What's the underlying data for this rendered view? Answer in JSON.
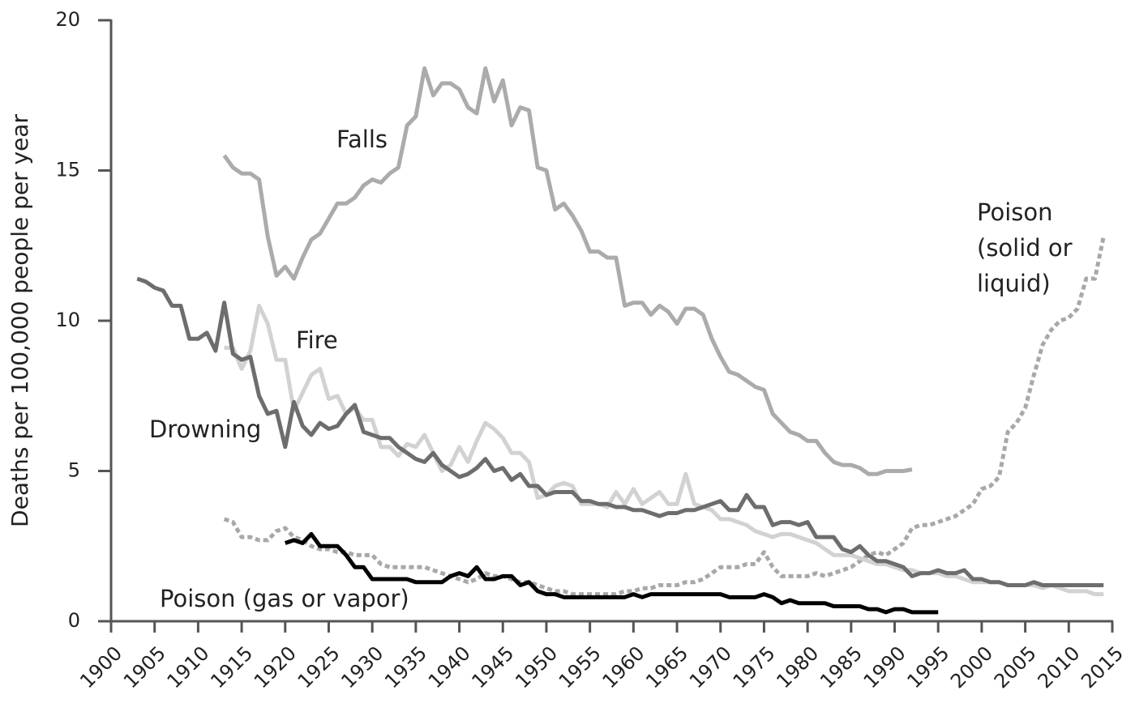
{
  "chart_data": {
    "type": "line",
    "y_label": "Deaths per 100,000 people per year",
    "xlim": [
      1900,
      2015
    ],
    "xticks": [
      1900,
      1905,
      1910,
      1915,
      1920,
      1925,
      1930,
      1935,
      1940,
      1945,
      1950,
      1955,
      1960,
      1965,
      1970,
      1975,
      1980,
      1985,
      1990,
      1995,
      2000,
      2005,
      2010,
      2015
    ],
    "ylim": [
      0,
      20
    ],
    "yticks": [
      0,
      5,
      10,
      15,
      20
    ],
    "x": [
      1903,
      1904,
      1905,
      1906,
      1907,
      1908,
      1909,
      1910,
      1911,
      1912,
      1913,
      1914,
      1915,
      1916,
      1917,
      1918,
      1919,
      1920,
      1921,
      1922,
      1923,
      1924,
      1925,
      1926,
      1927,
      1928,
      1929,
      1930,
      1931,
      1932,
      1933,
      1934,
      1935,
      1936,
      1937,
      1938,
      1939,
      1940,
      1941,
      1942,
      1943,
      1944,
      1945,
      1946,
      1947,
      1948,
      1949,
      1950,
      1951,
      1952,
      1953,
      1954,
      1955,
      1956,
      1957,
      1958,
      1959,
      1960,
      1961,
      1962,
      1963,
      1964,
      1965,
      1966,
      1967,
      1968,
      1969,
      1970,
      1971,
      1972,
      1973,
      1974,
      1975,
      1976,
      1977,
      1978,
      1979,
      1980,
      1981,
      1982,
      1983,
      1984,
      1985,
      1986,
      1987,
      1988,
      1989,
      1990,
      1991,
      1992,
      1993,
      1994,
      1995,
      1996,
      1997,
      1998,
      1999,
      2000,
      2001,
      2002,
      2003,
      2004,
      2005,
      2006,
      2007,
      2008,
      2009,
      2010,
      2011,
      2012,
      2013,
      2014
    ],
    "series": [
      {
        "name": "Poison (solid or liquid)",
        "color": "#a8a8a8",
        "dashed": true,
        "values": [
          null,
          null,
          null,
          null,
          null,
          null,
          null,
          null,
          null,
          null,
          3.4,
          3.3,
          2.8,
          2.8,
          2.7,
          2.7,
          3.0,
          3.1,
          2.8,
          2.7,
          2.5,
          2.4,
          2.4,
          2.3,
          2.3,
          2.2,
          2.2,
          2.2,
          1.9,
          1.8,
          1.8,
          1.8,
          1.8,
          1.8,
          1.7,
          1.6,
          1.5,
          1.4,
          1.3,
          1.4,
          1.6,
          1.5,
          1.5,
          1.4,
          1.3,
          1.3,
          1.2,
          1.1,
          1.0,
          1.0,
          0.9,
          0.9,
          0.9,
          0.9,
          0.9,
          0.9,
          1.0,
          1.0,
          1.1,
          1.1,
          1.2,
          1.2,
          1.2,
          1.3,
          1.3,
          1.4,
          1.6,
          1.8,
          1.8,
          1.8,
          1.9,
          1.9,
          2.3,
          1.8,
          1.5,
          1.5,
          1.5,
          1.5,
          1.6,
          1.5,
          1.6,
          1.7,
          1.8,
          2.0,
          2.2,
          2.3,
          2.2,
          2.4,
          2.6,
          3.1,
          3.2,
          3.2,
          3.3,
          3.4,
          3.5,
          3.7,
          3.9,
          4.4,
          4.5,
          4.8,
          6.3,
          6.6,
          7.1,
          8.2,
          9.2,
          9.7,
          10.0,
          10.1,
          10.4,
          11.4,
          11.4,
          12.8
        ]
      },
      {
        "name": "Fire",
        "color": "#d2d2d2",
        "dashed": false,
        "values": [
          null,
          null,
          null,
          null,
          null,
          null,
          null,
          null,
          null,
          null,
          9.1,
          9.1,
          8.4,
          9.0,
          10.5,
          9.9,
          8.7,
          8.7,
          7.0,
          7.6,
          8.2,
          8.4,
          7.4,
          7.5,
          6.9,
          7.1,
          6.7,
          6.7,
          5.8,
          5.8,
          5.5,
          5.9,
          5.8,
          6.2,
          5.6,
          5.0,
          5.2,
          5.8,
          5.3,
          6.0,
          6.6,
          6.4,
          6.1,
          5.6,
          5.6,
          5.3,
          4.1,
          4.2,
          4.5,
          4.6,
          4.5,
          3.9,
          3.9,
          3.9,
          3.8,
          4.3,
          3.9,
          4.4,
          3.9,
          4.1,
          4.3,
          3.9,
          3.9,
          4.9,
          3.9,
          3.8,
          3.7,
          3.4,
          3.4,
          3.3,
          3.2,
          3.0,
          2.9,
          2.8,
          2.9,
          2.9,
          2.8,
          2.7,
          2.6,
          2.4,
          2.2,
          2.2,
          2.2,
          2.1,
          2.0,
          1.9,
          1.9,
          1.8,
          1.7,
          1.7,
          1.6,
          1.6,
          1.6,
          1.5,
          1.5,
          1.4,
          1.3,
          1.3,
          1.3,
          1.3,
          1.2,
          1.2,
          1.2,
          1.2,
          1.1,
          1.2,
          1.1,
          1.0,
          1.0,
          1.0,
          0.9,
          0.9
        ]
      },
      {
        "name": "Falls",
        "color": "#ababab",
        "dashed": false,
        "values": [
          null,
          null,
          null,
          null,
          null,
          null,
          null,
          null,
          null,
          null,
          15.5,
          15.1,
          14.9,
          14.9,
          14.7,
          12.8,
          11.5,
          11.8,
          11.4,
          12.1,
          12.7,
          12.9,
          13.4,
          13.9,
          13.9,
          14.1,
          14.5,
          14.7,
          14.6,
          14.9,
          15.1,
          16.5,
          16.8,
          18.4,
          17.5,
          17.9,
          17.9,
          17.7,
          17.1,
          16.9,
          18.4,
          17.3,
          18.0,
          16.5,
          17.1,
          17.0,
          15.1,
          15.0,
          13.7,
          13.9,
          13.5,
          13.0,
          12.3,
          12.3,
          12.1,
          12.1,
          10.5,
          10.6,
          10.6,
          10.2,
          10.5,
          10.3,
          9.9,
          10.4,
          10.4,
          10.2,
          9.4,
          8.8,
          8.3,
          8.2,
          8.0,
          7.8,
          7.7,
          6.9,
          6.6,
          6.3,
          6.2,
          6.0,
          6.0,
          5.6,
          5.3,
          5.2,
          5.2,
          5.1,
          4.9,
          4.9,
          5.0,
          5.0,
          5.0,
          5.05,
          null,
          null,
          null,
          null,
          null,
          null,
          null,
          null,
          null,
          null,
          null,
          null,
          null,
          null,
          null,
          null,
          null,
          null,
          null,
          null,
          null,
          null
        ]
      },
      {
        "name": "Drowning",
        "color": "#6d6d6d",
        "dashed": false,
        "values": [
          11.4,
          11.3,
          11.1,
          11.0,
          10.5,
          10.5,
          9.4,
          9.4,
          9.6,
          9.0,
          10.6,
          8.9,
          8.7,
          8.8,
          7.5,
          6.9,
          7.0,
          5.8,
          7.3,
          6.5,
          6.2,
          6.6,
          6.4,
          6.5,
          6.9,
          7.2,
          6.3,
          6.2,
          6.1,
          6.1,
          5.8,
          5.6,
          5.4,
          5.3,
          5.6,
          5.2,
          5.0,
          4.8,
          4.9,
          5.1,
          5.4,
          5.0,
          5.1,
          4.7,
          4.9,
          4.5,
          4.5,
          4.2,
          4.3,
          4.3,
          4.3,
          4.0,
          4.0,
          3.9,
          3.9,
          3.8,
          3.8,
          3.7,
          3.7,
          3.6,
          3.5,
          3.6,
          3.6,
          3.7,
          3.7,
          3.8,
          3.9,
          4.0,
          3.7,
          3.7,
          4.2,
          3.8,
          3.8,
          3.2,
          3.3,
          3.3,
          3.2,
          3.3,
          2.8,
          2.8,
          2.8,
          2.4,
          2.3,
          2.5,
          2.2,
          2.0,
          2.0,
          1.9,
          1.8,
          1.5,
          1.6,
          1.6,
          1.7,
          1.6,
          1.6,
          1.7,
          1.4,
          1.4,
          1.3,
          1.3,
          1.2,
          1.2,
          1.2,
          1.3,
          1.2,
          1.2,
          1.2,
          1.2,
          1.2,
          1.2,
          1.2,
          1.2
        ]
      },
      {
        "name": "Poison (gas or vapor)",
        "color": "#000000",
        "dashed": false,
        "values": [
          null,
          null,
          null,
          null,
          null,
          null,
          null,
          null,
          null,
          null,
          null,
          null,
          null,
          null,
          null,
          null,
          null,
          2.6,
          2.7,
          2.6,
          2.9,
          2.5,
          2.5,
          2.5,
          2.2,
          1.8,
          1.8,
          1.4,
          1.4,
          1.4,
          1.4,
          1.4,
          1.3,
          1.3,
          1.3,
          1.3,
          1.5,
          1.6,
          1.5,
          1.8,
          1.4,
          1.4,
          1.5,
          1.5,
          1.2,
          1.3,
          1.0,
          0.9,
          0.9,
          0.8,
          0.8,
          0.8,
          0.8,
          0.8,
          0.8,
          0.8,
          0.8,
          0.9,
          0.8,
          0.9,
          0.9,
          0.9,
          0.9,
          0.9,
          0.9,
          0.9,
          0.9,
          0.9,
          0.8,
          0.8,
          0.8,
          0.8,
          0.9,
          0.8,
          0.6,
          0.7,
          0.6,
          0.6,
          0.6,
          0.6,
          0.5,
          0.5,
          0.5,
          0.5,
          0.4,
          0.4,
          0.3,
          0.4,
          0.4,
          0.3,
          0.3,
          0.3,
          0.3,
          null,
          null,
          null,
          null,
          null,
          null,
          null,
          null,
          null,
          null,
          null,
          null,
          null,
          null,
          null,
          null,
          null,
          null,
          null
        ]
      }
    ]
  }
}
